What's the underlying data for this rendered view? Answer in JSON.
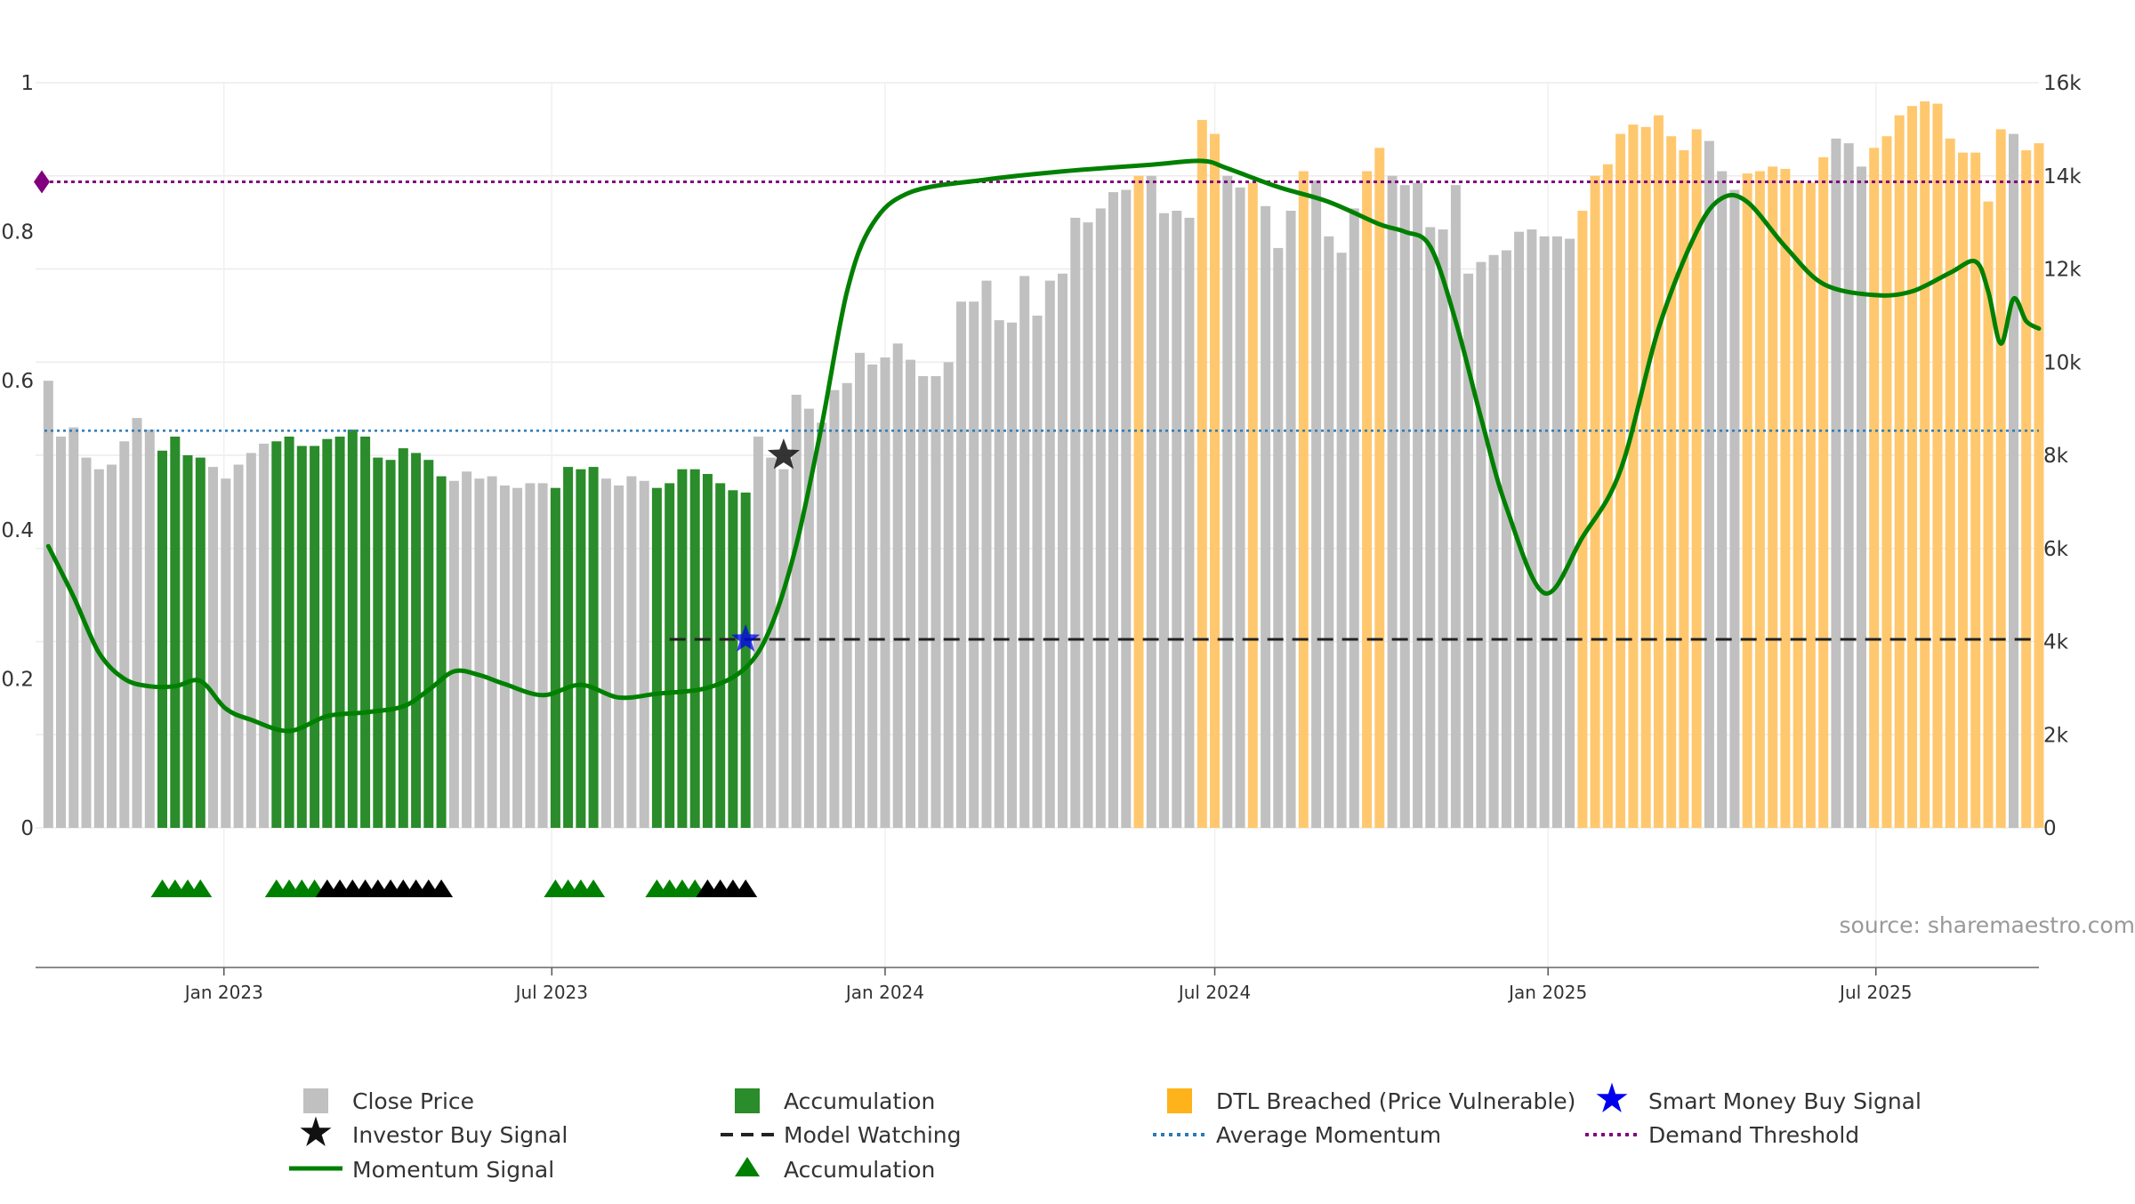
{
  "chart_data": {
    "type": "bar",
    "source_label": "source: sharemaestro.com",
    "left_axis": {
      "ylim": [
        0,
        1
      ],
      "ticks": [
        "0",
        "0.2",
        "0.4",
        "0.6",
        "0.8",
        "1"
      ]
    },
    "right_axis": {
      "ylim": [
        0,
        16000
      ],
      "ticks": [
        "0",
        "2k",
        "4k",
        "6k",
        "8k",
        "10k",
        "12k",
        "14k",
        "16k"
      ]
    },
    "x_ticks": [
      "Jan 2023",
      "Jul 2023",
      "Jan 2024",
      "Jul 2024",
      "Jan 2025",
      "Jul 2025"
    ],
    "grid": true,
    "legend_position": "bottom",
    "series_names": {
      "close_price": "Close Price",
      "accumulation": "Accumulation",
      "dtl": "DTL Breached (Price Vulnerable)",
      "smart_money": "Smart Money Buy Signal",
      "investor": "Investor Buy Signal",
      "model_watching": "Model Watching",
      "avg_momentum": "Average Momentum",
      "demand_threshold": "Demand Threshold",
      "momentum": "Momentum Signal",
      "accumulation_marker": "Accumulation"
    },
    "colors": {
      "close_price": "#c0c0c0",
      "accumulation": "#2a8c2a",
      "dtl": "#ffc86e",
      "momentum": "#008000",
      "avg_momentum": "#2b7bb9",
      "demand_threshold": "#800080",
      "model_watching": "#222222",
      "smart_money": "#0000ee",
      "investor": "#111111",
      "tri_green": "#008000",
      "tri_black": "#000000"
    },
    "x_start": "2022-09-19",
    "x_end": "2025-09-29",
    "week_start": "2022-09-26",
    "bar_values": [
      9600,
      8400,
      8600,
      7950,
      7700,
      7800,
      8300,
      8800,
      8550,
      8100,
      8400,
      8000,
      7950,
      7750,
      7500,
      7800,
      8050,
      8250,
      8300,
      8400,
      8200,
      8200,
      8350,
      8400,
      8550,
      8400,
      7950,
      7900,
      8150,
      8050,
      7900,
      7550,
      7450,
      7650,
      7500,
      7550,
      7350,
      7300,
      7400,
      7400,
      7300,
      7750,
      7700,
      7750,
      7500,
      7350,
      7550,
      7450,
      7300,
      7400,
      7700,
      7700,
      7600,
      7400,
      7250,
      7200,
      8400,
      7950,
      7700,
      9300,
      9000,
      8700,
      9400,
      9550,
      10200,
      9950,
      10100,
      10400,
      10050,
      9700,
      9700,
      10000,
      11300,
      11300,
      11750,
      10900,
      10850,
      11850,
      11000,
      11750,
      11900,
      13100,
      13000,
      13300,
      13650,
      13700,
      14000,
      14000,
      13200,
      13250,
      13100,
      15200,
      14900,
      14000,
      13750,
      13850,
      13350,
      12450,
      13250,
      14100,
      13900,
      12700,
      12350,
      13300,
      14100,
      14600,
      14000,
      13800,
      13850,
      12900,
      12850,
      13800,
      11900,
      12150,
      12300,
      12400,
      12800,
      12850,
      12700,
      12700,
      12650,
      13250,
      14000,
      14250,
      14900,
      15100,
      15050,
      15300,
      14850,
      14550,
      15000,
      14750,
      14100,
      13700,
      14050,
      14100,
      14200,
      14150,
      13900,
      13850,
      14400,
      14800,
      14700,
      14200,
      14600,
      14850,
      15300,
      15500,
      15600,
      15550,
      14800,
      14500,
      14500,
      13450,
      15000,
      14900,
      14550,
      14700
    ],
    "accumulation_week_ranges": [
      [
        9,
        12
      ],
      [
        18,
        31
      ],
      [
        40,
        43
      ],
      [
        48,
        55
      ]
    ],
    "dtl_week_ranges": [
      [
        86,
        86
      ],
      [
        91,
        92
      ],
      [
        95,
        95
      ],
      [
        99,
        99
      ],
      [
        104,
        105
      ],
      [
        121,
        130
      ],
      [
        134,
        140
      ],
      [
        144,
        154
      ],
      [
        156,
        160
      ]
    ],
    "momentum_points": [
      [
        "2022-09-26",
        0.378
      ],
      [
        "2022-10-10",
        0.31
      ],
      [
        "2022-10-24",
        0.235
      ],
      [
        "2022-11-07",
        0.2
      ],
      [
        "2022-11-21",
        0.19
      ],
      [
        "2022-12-05",
        0.19
      ],
      [
        "2022-12-19",
        0.197
      ],
      [
        "2023-01-02",
        0.16
      ],
      [
        "2023-01-16",
        0.145
      ],
      [
        "2023-02-06",
        0.13
      ],
      [
        "2023-02-27",
        0.15
      ],
      [
        "2023-03-20",
        0.155
      ],
      [
        "2023-04-10",
        0.163
      ],
      [
        "2023-04-24",
        0.185
      ],
      [
        "2023-05-08",
        0.21
      ],
      [
        "2023-05-22",
        0.205
      ],
      [
        "2023-06-05",
        0.193
      ],
      [
        "2023-06-26",
        0.178
      ],
      [
        "2023-07-17",
        0.192
      ],
      [
        "2023-08-07",
        0.175
      ],
      [
        "2023-08-28",
        0.18
      ],
      [
        "2023-09-25",
        0.188
      ],
      [
        "2023-10-16",
        0.215
      ],
      [
        "2023-10-30",
        0.27
      ],
      [
        "2023-11-13",
        0.38
      ],
      [
        "2023-11-27",
        0.54
      ],
      [
        "2023-12-11",
        0.72
      ],
      [
        "2023-12-25",
        0.81
      ],
      [
        "2024-01-15",
        0.853
      ],
      [
        "2024-02-26",
        0.87
      ],
      [
        "2024-04-08",
        0.881
      ],
      [
        "2024-05-27",
        0.89
      ],
      [
        "2024-06-24",
        0.895
      ],
      [
        "2024-07-08",
        0.885
      ],
      [
        "2024-08-05",
        0.86
      ],
      [
        "2024-09-02",
        0.84
      ],
      [
        "2024-09-30",
        0.81
      ],
      [
        "2024-10-14",
        0.8
      ],
      [
        "2024-10-28",
        0.78
      ],
      [
        "2024-11-11",
        0.68
      ],
      [
        "2024-11-25",
        0.55
      ],
      [
        "2024-12-09",
        0.43
      ],
      [
        "2024-12-30",
        0.315
      ],
      [
        "2025-01-20",
        0.39
      ],
      [
        "2025-02-10",
        0.48
      ],
      [
        "2025-03-03",
        0.67
      ],
      [
        "2025-03-24",
        0.8
      ],
      [
        "2025-04-07",
        0.845
      ],
      [
        "2025-04-21",
        0.84
      ],
      [
        "2025-05-12",
        0.78
      ],
      [
        "2025-06-02",
        0.73
      ],
      [
        "2025-06-30",
        0.715
      ],
      [
        "2025-07-21",
        0.72
      ],
      [
        "2025-08-11",
        0.745
      ],
      [
        "2025-08-25",
        0.76
      ],
      [
        "2025-09-01",
        0.72
      ],
      [
        "2025-09-08",
        0.65
      ],
      [
        "2025-09-15",
        0.71
      ],
      [
        "2025-09-22",
        0.68
      ],
      [
        "2025-09-29",
        0.67
      ]
    ],
    "avg_momentum_value": 0.533,
    "demand_threshold_value": 0.867,
    "model_watching_level": 0.253,
    "model_watching_start": "2023-09-04",
    "smart_money_signal": {
      "date": "2023-10-16",
      "value": 0.253
    },
    "investor_signal": {
      "date": "2023-11-06",
      "value": 0.5
    },
    "markers_green_weeks": [
      9,
      10,
      11,
      12,
      18,
      19,
      20,
      21,
      40,
      41,
      42,
      43,
      48,
      49,
      50,
      51
    ],
    "markers_black_weeks": [
      22,
      23,
      24,
      25,
      26,
      27,
      28,
      29,
      30,
      31,
      52,
      53,
      54,
      55
    ]
  }
}
